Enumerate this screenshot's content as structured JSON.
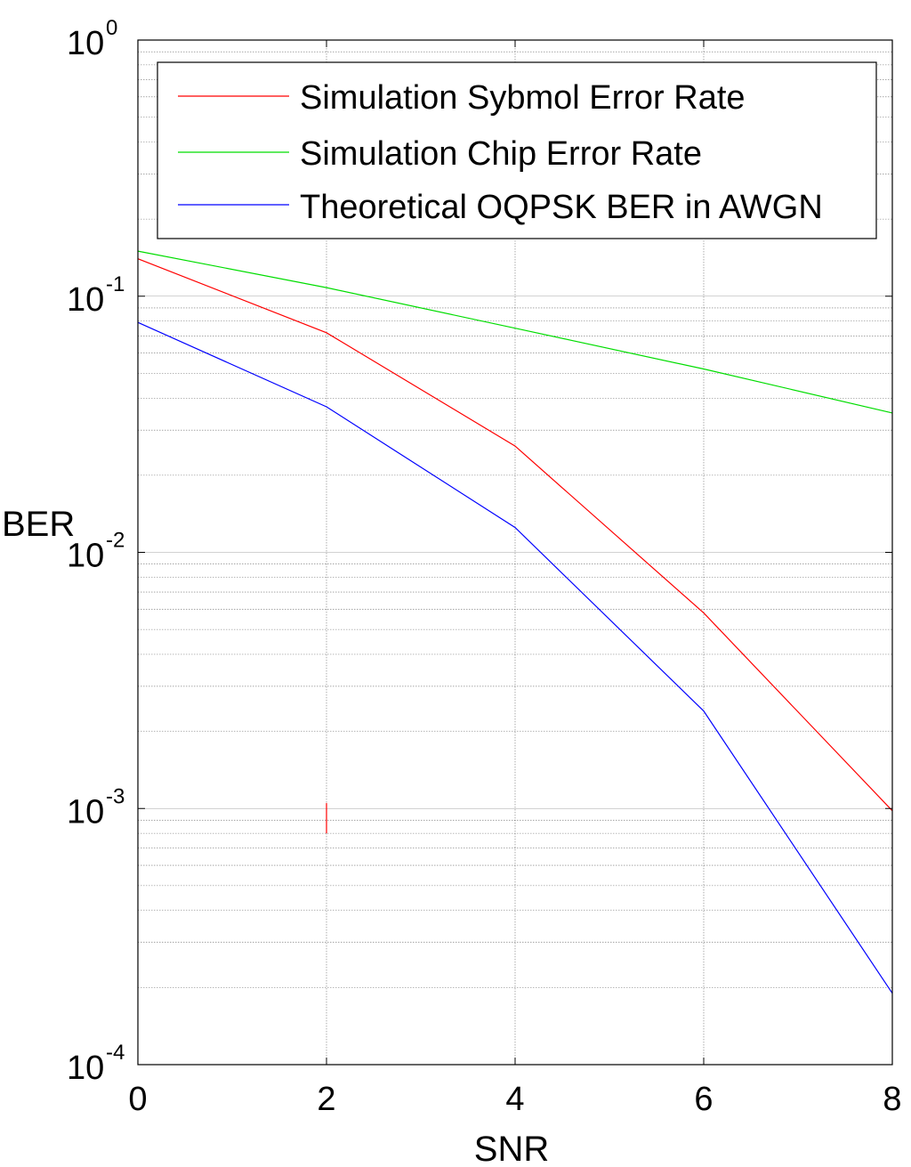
{
  "chart_data": {
    "type": "line",
    "title": "",
    "xlabel": "SNR",
    "ylabel": "BER",
    "yscale": "log",
    "xlim": [
      0,
      8
    ],
    "ylim": [
      0.0001,
      1
    ],
    "grid": true,
    "legend_position": "top-right",
    "x_ticks": [
      {
        "value": 0,
        "label": "0"
      },
      {
        "value": 2,
        "label": "2"
      },
      {
        "value": 4,
        "label": "4"
      },
      {
        "value": 6,
        "label": "6"
      },
      {
        "value": 8,
        "label": "8"
      }
    ],
    "y_ticks": [
      {
        "value": 1,
        "base": "10",
        "exp": "0"
      },
      {
        "value": 0.1,
        "base": "10",
        "exp": "-1"
      },
      {
        "value": 0.01,
        "base": "10",
        "exp": "-2"
      },
      {
        "value": 0.001,
        "base": "10",
        "exp": "-3"
      },
      {
        "value": 0.0001,
        "base": "10",
        "exp": "-4"
      }
    ],
    "series": [
      {
        "name": "Simulation Sybmol Error Rate",
        "color": "#ff0000",
        "x": [
          0,
          2,
          4,
          6,
          8
        ],
        "values": [
          0.14,
          0.072,
          0.026,
          0.0058,
          0.00098
        ]
      },
      {
        "name": "Simulation Chip Error Rate",
        "color": "#00dd00",
        "x": [
          0,
          2,
          4,
          6,
          8
        ],
        "values": [
          0.15,
          0.108,
          0.075,
          0.052,
          0.035
        ]
      },
      {
        "name": "Theoretical OQPSK BER in AWGN",
        "color": "#0000ff",
        "x": [
          0,
          2,
          4,
          6,
          8
        ],
        "values": [
          0.079,
          0.037,
          0.0125,
          0.0024,
          0.00019
        ]
      }
    ],
    "annotations": [
      {
        "type": "vertical-mark",
        "color": "#ff0000",
        "x": 2,
        "y_from": 0.0008,
        "y_to": 0.00105
      }
    ]
  }
}
